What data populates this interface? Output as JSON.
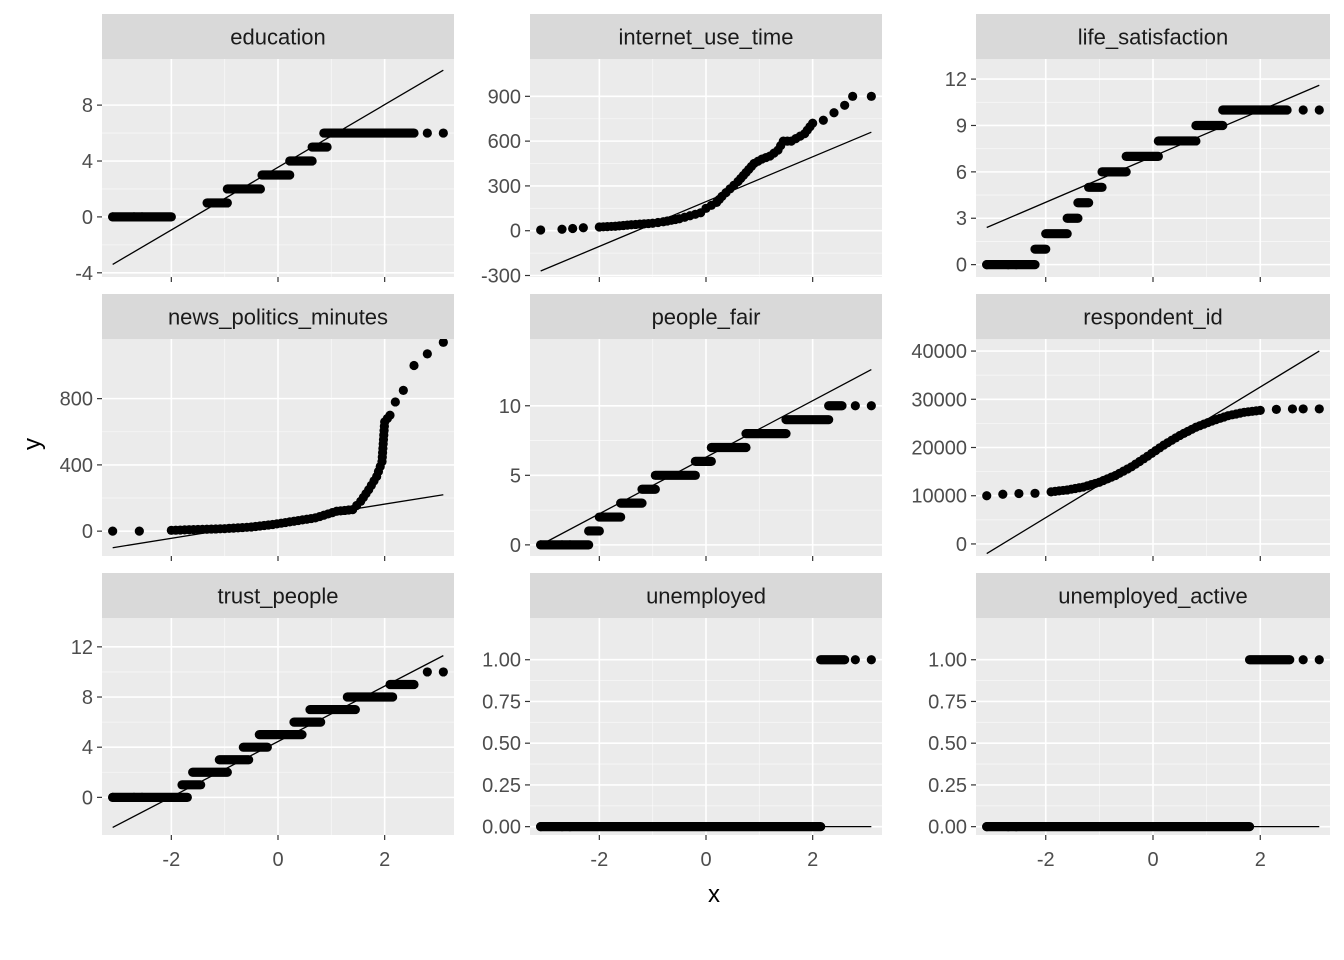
{
  "colors": {
    "panel_background": "#ebebeb",
    "strip_background": "#d9d9d9",
    "grid_major": "#ffffff",
    "point": "#000000",
    "line": "#000000"
  },
  "chart_data": {
    "type": "scatter",
    "subtype": "qq-plot facet grid",
    "xlabel": "x",
    "ylabel": "y",
    "facet_layout": "3 columns x 3 rows, free y scales",
    "x_ticks": [
      "-2",
      "0",
      "2"
    ],
    "x_tick_values": [
      -2,
      0,
      2
    ],
    "xlim": [
      -3.3,
      3.3
    ],
    "grid": true,
    "facets": [
      {
        "name": "education",
        "ylim": [
          -4.3,
          11.3
        ],
        "y_ticks": [
          "-4",
          "0",
          "4",
          "8"
        ],
        "y_tick_values": [
          -4,
          0,
          4,
          8
        ],
        "qq_line": [
          [
            -3.1,
            -3.4
          ],
          [
            3.1,
            10.5
          ]
        ],
        "levels": [
          [
            -3.1,
            -2.0,
            0
          ],
          [
            -1.33,
            -0.95,
            1
          ],
          [
            -0.95,
            -0.33,
            2
          ],
          [
            -0.3,
            0.22,
            3
          ],
          [
            0.22,
            0.64,
            4
          ],
          [
            0.64,
            0.92,
            5
          ],
          [
            0.86,
            2.55,
            6
          ]
        ],
        "extra_points": [
          [
            2.8,
            6
          ],
          [
            3.1,
            6
          ]
        ]
      },
      {
        "name": "internet_use_time",
        "ylim": [
          -310,
          1150
        ],
        "y_ticks": [
          "-300",
          "0",
          "300",
          "600",
          "900"
        ],
        "y_tick_values": [
          -300,
          0,
          300,
          600,
          900
        ],
        "qq_line": [
          [
            -3.1,
            -270
          ],
          [
            3.1,
            660
          ]
        ],
        "points": [
          [
            -3.1,
            5
          ],
          [
            -2.7,
            10
          ],
          [
            -2.5,
            15
          ],
          [
            -2.3,
            20
          ],
          [
            -2.0,
            25
          ],
          [
            -1.7,
            30
          ],
          [
            -1.4,
            40
          ],
          [
            -1.0,
            50
          ],
          [
            -0.8,
            60
          ],
          [
            -0.5,
            80
          ],
          [
            -0.3,
            100
          ],
          [
            -0.1,
            120
          ],
          [
            0.0,
            150
          ],
          [
            0.1,
            170
          ],
          [
            0.2,
            190
          ],
          [
            0.3,
            230
          ],
          [
            0.45,
            280
          ],
          [
            0.6,
            330
          ],
          [
            0.75,
            390
          ],
          [
            0.9,
            450
          ],
          [
            1.05,
            480
          ],
          [
            1.2,
            500
          ],
          [
            1.35,
            540
          ],
          [
            1.45,
            600
          ],
          [
            1.6,
            600
          ],
          [
            1.85,
            650
          ],
          [
            2.0,
            720
          ],
          [
            2.2,
            740
          ],
          [
            2.4,
            790
          ],
          [
            2.6,
            840
          ],
          [
            2.75,
            900
          ],
          [
            3.1,
            900
          ]
        ]
      },
      {
        "name": "life_satisfaction",
        "ylim": [
          -0.8,
          13.3
        ],
        "y_ticks": [
          "0",
          "3",
          "6",
          "9",
          "12"
        ],
        "y_tick_values": [
          0,
          3,
          6,
          9,
          12
        ],
        "qq_line": [
          [
            -3.1,
            2.4
          ],
          [
            3.1,
            11.6
          ]
        ],
        "levels": [
          [
            -3.1,
            -2.2,
            0
          ],
          [
            -2.2,
            -2.0,
            1
          ],
          [
            -2.0,
            -1.6,
            2
          ],
          [
            -1.6,
            -1.4,
            3
          ],
          [
            -1.4,
            -1.2,
            4
          ],
          [
            -1.2,
            -0.95,
            5
          ],
          [
            -0.95,
            -0.5,
            6
          ],
          [
            -0.5,
            0.1,
            7
          ],
          [
            0.1,
            0.8,
            8
          ],
          [
            0.8,
            1.3,
            9
          ],
          [
            1.3,
            2.5,
            10
          ]
        ],
        "extra_points": [
          [
            2.8,
            10
          ],
          [
            3.1,
            10
          ]
        ]
      },
      {
        "name": "news_politics_minutes",
        "ylim": [
          -150,
          1160
        ],
        "y_ticks": [
          "0",
          "400",
          "800"
        ],
        "y_tick_values": [
          0,
          400,
          800
        ],
        "qq_line": [
          [
            -3.1,
            -100
          ],
          [
            3.1,
            220
          ]
        ],
        "points": [
          [
            -3.1,
            0
          ],
          [
            -2.6,
            0
          ],
          [
            -2.0,
            5
          ],
          [
            -1.5,
            10
          ],
          [
            -1.0,
            15
          ],
          [
            -0.5,
            25
          ],
          [
            -0.1,
            40
          ],
          [
            0.3,
            60
          ],
          [
            0.7,
            80
          ],
          [
            1.1,
            120
          ],
          [
            1.4,
            130
          ],
          [
            1.55,
            180
          ],
          [
            1.7,
            250
          ],
          [
            1.85,
            330
          ],
          [
            1.95,
            420
          ],
          [
            2.0,
            660
          ],
          [
            2.1,
            700
          ],
          [
            2.2,
            780
          ],
          [
            2.35,
            850
          ],
          [
            2.55,
            1000
          ],
          [
            2.8,
            1070
          ],
          [
            3.1,
            1140
          ]
        ]
      },
      {
        "name": "people_fair",
        "ylim": [
          -0.8,
          14.8
        ],
        "y_ticks": [
          "0",
          "5",
          "10"
        ],
        "y_tick_values": [
          0,
          5,
          10
        ],
        "qq_line": [
          [
            -3.1,
            0.0
          ],
          [
            3.1,
            12.6
          ]
        ],
        "levels": [
          [
            -3.1,
            -2.2,
            0
          ],
          [
            -2.2,
            -2.0,
            1
          ],
          [
            -2.0,
            -1.6,
            2
          ],
          [
            -1.6,
            -1.2,
            3
          ],
          [
            -1.2,
            -0.95,
            4
          ],
          [
            -0.95,
            -0.2,
            5
          ],
          [
            -0.2,
            0.1,
            6
          ],
          [
            0.1,
            0.75,
            7
          ],
          [
            0.75,
            1.5,
            8
          ],
          [
            1.5,
            2.3,
            9
          ],
          [
            2.3,
            2.55,
            10
          ]
        ],
        "extra_points": [
          [
            2.8,
            10
          ],
          [
            3.1,
            10
          ]
        ]
      },
      {
        "name": "respondent_id",
        "ylim": [
          -2500,
          42500
        ],
        "y_ticks": [
          "0",
          "10000",
          "20000",
          "30000",
          "40000"
        ],
        "y_tick_values": [
          0,
          10000,
          20000,
          30000,
          40000
        ],
        "qq_line": [
          [
            -3.1,
            -2000
          ],
          [
            3.1,
            40000
          ]
        ],
        "points": [
          [
            -3.1,
            10000
          ],
          [
            -2.8,
            10300
          ],
          [
            -2.5,
            10450
          ],
          [
            -2.2,
            10500
          ],
          [
            -1.9,
            10800
          ],
          [
            -1.6,
            11200
          ],
          [
            -1.3,
            11800
          ],
          [
            -1.0,
            12800
          ],
          [
            -0.7,
            14200
          ],
          [
            -0.4,
            16000
          ],
          [
            -0.1,
            18200
          ],
          [
            0.2,
            20500
          ],
          [
            0.5,
            22500
          ],
          [
            0.8,
            24200
          ],
          [
            1.1,
            25500
          ],
          [
            1.4,
            26600
          ],
          [
            1.7,
            27300
          ],
          [
            2.0,
            27700
          ],
          [
            2.3,
            27900
          ],
          [
            2.6,
            28000
          ],
          [
            2.8,
            28000
          ],
          [
            3.1,
            28000
          ]
        ]
      },
      {
        "name": "trust_people",
        "ylim": [
          -3.0,
          14.3
        ],
        "y_ticks": [
          "0",
          "4",
          "8",
          "12"
        ],
        "y_tick_values": [
          0,
          4,
          8,
          12
        ],
        "qq_line": [
          [
            -3.1,
            -2.4
          ],
          [
            3.1,
            11.3
          ]
        ],
        "levels": [
          [
            -3.1,
            -1.7,
            0
          ],
          [
            -1.8,
            -1.45,
            1
          ],
          [
            -1.6,
            -0.95,
            2
          ],
          [
            -1.1,
            -0.55,
            3
          ],
          [
            -0.65,
            -0.2,
            4
          ],
          [
            -0.35,
            0.45,
            5
          ],
          [
            0.3,
            0.8,
            6
          ],
          [
            0.6,
            1.45,
            7
          ],
          [
            1.3,
            2.15,
            8
          ],
          [
            2.1,
            2.55,
            9
          ]
        ],
        "extra_points": [
          [
            2.8,
            10
          ],
          [
            3.1,
            10
          ]
        ]
      },
      {
        "name": "unemployed",
        "ylim": [
          -0.05,
          1.25
        ],
        "y_ticks": [
          "0.00",
          "0.25",
          "0.50",
          "0.75",
          "1.00"
        ],
        "y_tick_values": [
          0,
          0.25,
          0.5,
          0.75,
          1.0
        ],
        "qq_line": [
          [
            -3.1,
            0
          ],
          [
            3.1,
            0
          ]
        ],
        "levels": [
          [
            -3.1,
            2.15,
            0
          ],
          [
            2.15,
            2.6,
            1
          ]
        ],
        "extra_points": [
          [
            2.8,
            1
          ],
          [
            3.1,
            1
          ]
        ]
      },
      {
        "name": "unemployed_active",
        "ylim": [
          -0.05,
          1.25
        ],
        "y_ticks": [
          "0.00",
          "0.25",
          "0.50",
          "0.75",
          "1.00"
        ],
        "y_tick_values": [
          0,
          0.25,
          0.5,
          0.75,
          1.0
        ],
        "qq_line": [
          [
            -3.1,
            0
          ],
          [
            3.1,
            0
          ]
        ],
        "levels": [
          [
            -3.1,
            1.8,
            0
          ],
          [
            1.8,
            2.55,
            1
          ]
        ],
        "extra_points": [
          [
            2.8,
            1
          ],
          [
            3.1,
            1
          ]
        ]
      }
    ]
  }
}
